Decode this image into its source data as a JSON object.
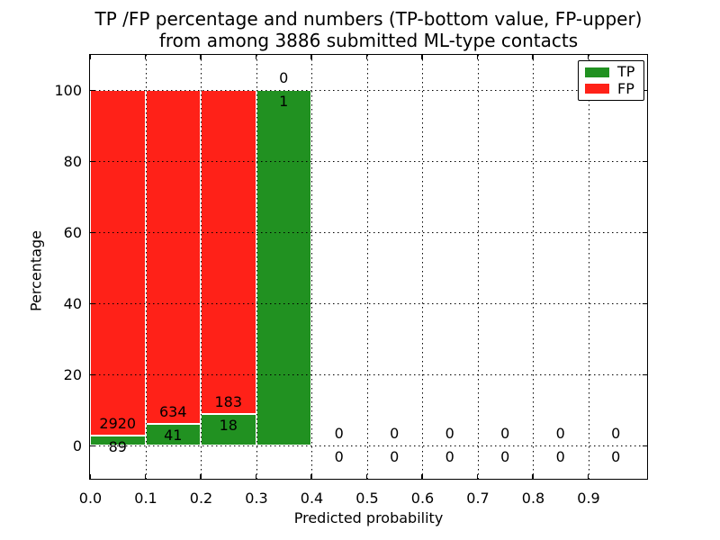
{
  "title": {
    "line1": "TP /FP percentage and numbers (TP-bottom value, FP-upper)",
    "line2": "from among 3886 submitted ML-type contacts"
  },
  "axes": {
    "xlabel": "Predicted probability",
    "ylabel": "Percentage",
    "yticks": [
      {
        "value": 0,
        "label": "0"
      },
      {
        "value": 20,
        "label": "20"
      },
      {
        "value": 40,
        "label": "40"
      },
      {
        "value": 60,
        "label": "60"
      },
      {
        "value": 80,
        "label": "80"
      },
      {
        "value": 100,
        "label": "100"
      }
    ],
    "xticks": [
      {
        "value": 0.0,
        "label": "0.0"
      },
      {
        "value": 0.1,
        "label": "0.1"
      },
      {
        "value": 0.2,
        "label": "0.2"
      },
      {
        "value": 0.3,
        "label": "0.3"
      },
      {
        "value": 0.4,
        "label": "0.4"
      },
      {
        "value": 0.5,
        "label": "0.5"
      },
      {
        "value": 0.6,
        "label": "0.6"
      },
      {
        "value": 0.7,
        "label": "0.7"
      },
      {
        "value": 0.8,
        "label": "0.8"
      },
      {
        "value": 0.9,
        "label": "0.9"
      }
    ]
  },
  "legend": {
    "items": [
      {
        "label": "TP",
        "color": "#219121"
      },
      {
        "label": "FP",
        "color": "#ff2118"
      }
    ]
  },
  "chart_data": {
    "type": "bar",
    "stacked": true,
    "title": "TP /FP percentage and numbers (TP-bottom value, FP-upper) from among 3886 submitted ML-type contacts",
    "total_contacts": 3886,
    "xlabel": "Predicted probability",
    "ylabel": "Percentage",
    "xlim": [
      0,
      1.005
    ],
    "ylim": [
      -9,
      110
    ],
    "grid": "dotted-black-over-bars",
    "legend_position": "upper-right",
    "tp_color": "#219121",
    "fp_color": "#ff2118",
    "bins": [
      {
        "x_range": [
          0.0,
          0.1
        ],
        "tp_count": 89,
        "fp_count": 2920,
        "tp_pct": 2.96,
        "fp_pct": 97.04
      },
      {
        "x_range": [
          0.1,
          0.2
        ],
        "tp_count": 41,
        "fp_count": 634,
        "tp_pct": 6.07,
        "fp_pct": 93.93
      },
      {
        "x_range": [
          0.2,
          0.3
        ],
        "tp_count": 18,
        "fp_count": 183,
        "tp_pct": 8.96,
        "fp_pct": 91.04
      },
      {
        "x_range": [
          0.3,
          0.4
        ],
        "tp_count": 1,
        "fp_count": 0,
        "tp_pct": 100,
        "fp_pct": 0
      },
      {
        "x_range": [
          0.4,
          0.5
        ],
        "tp_count": 0,
        "fp_count": 0,
        "tp_pct": 0,
        "fp_pct": 0
      },
      {
        "x_range": [
          0.5,
          0.6
        ],
        "tp_count": 0,
        "fp_count": 0,
        "tp_pct": 0,
        "fp_pct": 0
      },
      {
        "x_range": [
          0.6,
          0.7
        ],
        "tp_count": 0,
        "fp_count": 0,
        "tp_pct": 0,
        "fp_pct": 0
      },
      {
        "x_range": [
          0.7,
          0.8
        ],
        "tp_count": 0,
        "fp_count": 0,
        "tp_pct": 0,
        "fp_pct": 0
      },
      {
        "x_range": [
          0.8,
          0.9
        ],
        "tp_count": 0,
        "fp_count": 0,
        "tp_pct": 0,
        "fp_pct": 0
      },
      {
        "x_range": [
          0.9,
          1.0
        ],
        "tp_count": 0,
        "fp_count": 0,
        "tp_pct": 0,
        "fp_pct": 0
      }
    ]
  }
}
